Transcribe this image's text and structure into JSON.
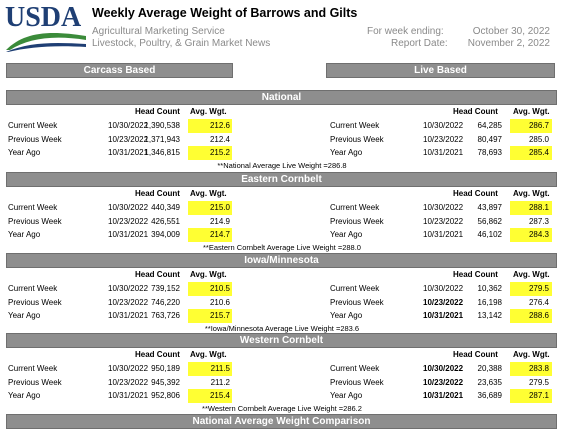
{
  "header": {
    "logo": "USDA",
    "title": "Weekly Average Weight of Barrows and Gilts",
    "agency": "Agricultural Marketing Service",
    "division": "Livestock, Poultry, & Grain Market News",
    "week_ending_label": "For week ending:",
    "week_ending": "October 30, 2022",
    "report_date_label": "Report Date:",
    "report_date": "November 2, 2022"
  },
  "columns": {
    "left": "Carcass Based",
    "right": "Live Based"
  },
  "column_headers": {
    "head_count": "Head Count",
    "avg_wgt": "Avg. Wgt."
  },
  "sections": [
    {
      "title": "National",
      "carcass": [
        {
          "label": "Current Week",
          "date": "10/30/2022",
          "head_count": "1,390,538",
          "avg_wgt": "212.6",
          "highlight": true
        },
        {
          "label": "Previous Week",
          "date": "10/23/2022",
          "head_count": "1,371,943",
          "avg_wgt": "212.4"
        },
        {
          "label": "Year Ago",
          "date": "10/31/2021",
          "head_count": "1,346,815",
          "avg_wgt": "215.2",
          "highlight": true
        }
      ],
      "live": [
        {
          "label": "Current Week",
          "date": "10/30/2022",
          "head_count": "64,285",
          "avg_wgt": "286.7",
          "highlight": true
        },
        {
          "label": "Previous Week",
          "date": "10/23/2022",
          "head_count": "80,497",
          "avg_wgt": "285.0"
        },
        {
          "label": "Year Ago",
          "date": "10/31/2021",
          "head_count": "78,693",
          "avg_wgt": "285.4",
          "highlight": true
        }
      ],
      "note": "**National Average Live Weight =286.8"
    },
    {
      "title": "Eastern Cornbelt",
      "carcass": [
        {
          "label": "Current Week",
          "date": "10/30/2022",
          "head_count": "440,349",
          "avg_wgt": "215.0",
          "highlight": true
        },
        {
          "label": "Previous Week",
          "date": "10/23/2022",
          "head_count": "426,551",
          "avg_wgt": "214.9"
        },
        {
          "label": "Year Ago",
          "date": "10/31/2021",
          "head_count": "394,009",
          "avg_wgt": "214.7",
          "highlight": true
        }
      ],
      "live": [
        {
          "label": "Current Week",
          "date": "10/30/2022",
          "head_count": "43,897",
          "avg_wgt": "288.1",
          "highlight": true
        },
        {
          "label": "Previous Week",
          "date": "10/23/2022",
          "head_count": "56,862",
          "avg_wgt": "287.3"
        },
        {
          "label": "Year Ago",
          "date": "10/31/2021",
          "head_count": "46,102",
          "avg_wgt": "284.3",
          "highlight": true
        }
      ],
      "note": "**Eastern Cornbelt Average Live Weight =288.0"
    },
    {
      "title": "Iowa/Minnesota",
      "carcass": [
        {
          "label": "Current Week",
          "date": "10/30/2022",
          "head_count": "739,152",
          "avg_wgt": "210.5",
          "highlight": true
        },
        {
          "label": "Previous Week",
          "date": "10/23/2022",
          "head_count": "746,220",
          "avg_wgt": "210.6"
        },
        {
          "label": "Year Ago",
          "date": "10/31/2021",
          "head_count": "763,726",
          "avg_wgt": "215.7",
          "highlight": true
        }
      ],
      "live": [
        {
          "label": "Current Week",
          "date": "10/30/2022",
          "head_count": "10,362",
          "avg_wgt": "279.5",
          "highlight": true
        },
        {
          "label": "Previous Week",
          "date": "10/23/2022",
          "head_count": "16,198",
          "avg_wgt": "276.4",
          "date_bold": true
        },
        {
          "label": "Year Ago",
          "date": "10/31/2021",
          "head_count": "13,142",
          "avg_wgt": "288.6",
          "highlight": true,
          "date_bold": true
        }
      ],
      "note": "**Iowa/Minnesota Average Live Weight =283.6"
    },
    {
      "title": "Western Cornbelt",
      "carcass": [
        {
          "label": "Current Week",
          "date": "10/30/2022",
          "head_count": "950,189",
          "avg_wgt": "211.5",
          "highlight": true
        },
        {
          "label": "Previous Week",
          "date": "10/23/2022",
          "head_count": "945,392",
          "avg_wgt": "211.2"
        },
        {
          "label": "Year Ago",
          "date": "10/31/2021",
          "head_count": "952,806",
          "avg_wgt": "215.4",
          "highlight": true
        }
      ],
      "live": [
        {
          "label": "Current Week",
          "date": "10/30/2022",
          "head_count": "20,388",
          "avg_wgt": "283.8",
          "highlight": true,
          "date_bold": true
        },
        {
          "label": "Previous Week",
          "date": "10/23/2022",
          "head_count": "23,635",
          "avg_wgt": "279.5",
          "date_bold": true
        },
        {
          "label": "Year Ago",
          "date": "10/31/2021",
          "head_count": "36,689",
          "avg_wgt": "287.1",
          "highlight": true,
          "date_bold": true
        }
      ],
      "note": "**Western Cornbelt Average Live Weight =286.2"
    }
  ],
  "footer_section": "National Average Weight Comparison"
}
